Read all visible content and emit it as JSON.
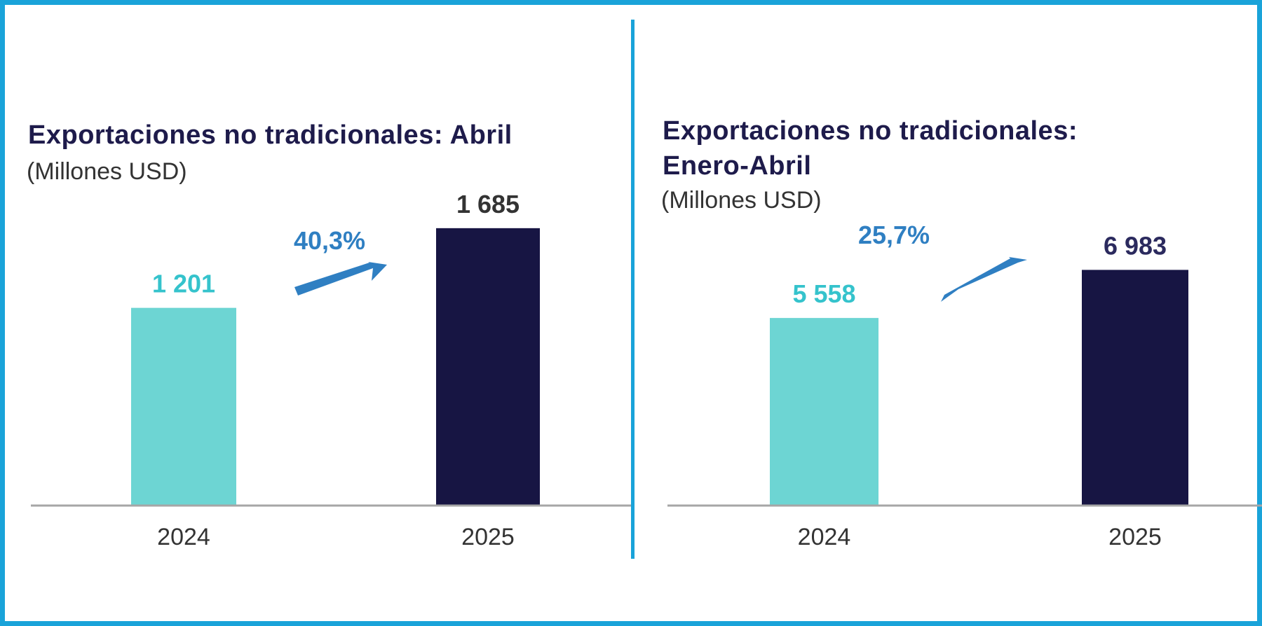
{
  "colors": {
    "border": "#1aa3d9",
    "title": "#1e1b4b",
    "bar_2024": "#6dd5d3",
    "bar_2025": "#171543",
    "label_2024": "#35c3cc",
    "label_2025_left": "#333333",
    "label_2025_right": "#2b2a5e",
    "growth": "#2f7fc2"
  },
  "panels": [
    {
      "title": "Exportaciones no tradicionales: Abril",
      "subtitle": "(Millones USD)",
      "growth_label": "40,3%",
      "value_labels": [
        "1 201",
        "1 685"
      ],
      "tick_labels": [
        "2024",
        "2025"
      ]
    },
    {
      "title_line1": "Exportaciones no tradicionales:",
      "title_line2": "Enero-Abril",
      "subtitle": "(Millones USD)",
      "growth_label": "25,7%",
      "value_labels": [
        "5 558",
        "6 983"
      ],
      "tick_labels": [
        "2024",
        "2025"
      ]
    }
  ],
  "chart_data": [
    {
      "type": "bar",
      "title": "Exportaciones no tradicionales: Abril",
      "subtitle": "(Millones USD)",
      "categories": [
        "2024",
        "2025"
      ],
      "values": [
        1201,
        1685
      ],
      "annotation": "40,3%",
      "grid": false
    },
    {
      "type": "bar",
      "title": "Exportaciones no tradicionales: Enero-Abril",
      "subtitle": "(Millones USD)",
      "categories": [
        "2024",
        "2025"
      ],
      "values": [
        5558,
        6983
      ],
      "annotation": "25,7%",
      "grid": false
    }
  ]
}
